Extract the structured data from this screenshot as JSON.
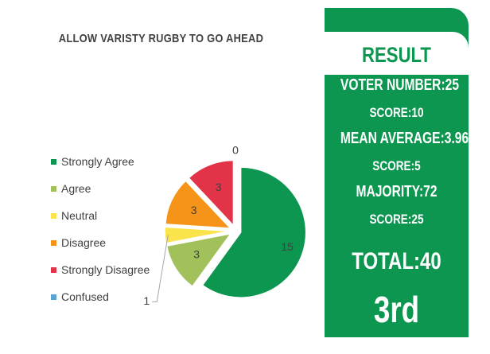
{
  "chart_data": {
    "type": "pie",
    "title": "ALLOW VARISTY RUGBY TO GO AHEAD",
    "categories": [
      "Strongly Agree",
      "Agree",
      "Neutral",
      "Disagree",
      "Strongly Disagree",
      "Confused"
    ],
    "values": [
      15,
      3,
      1,
      3,
      3,
      0
    ],
    "data_labels": [
      "15",
      "3",
      "1",
      "3",
      "3",
      "0"
    ],
    "colors": [
      "#0c9650",
      "#a3c15a",
      "#fbe34b",
      "#f59418",
      "#e33348",
      "#5ba3d0"
    ],
    "legend_position": "left",
    "exploded": true
  },
  "result": {
    "title": "RESULT",
    "voter_number": "VOTER NUMBER:25",
    "voter_score": "SCORE:10",
    "mean_average": "MEAN AVERAGE:3.96",
    "mean_score": "SCORE:5",
    "majority": "MAJORITY:72",
    "majority_score": "SCORE:25",
    "total": "TOTAL:40",
    "rank": "3rd"
  },
  "colors": {
    "panel": "#0c9650",
    "text_dark": "#404040"
  }
}
